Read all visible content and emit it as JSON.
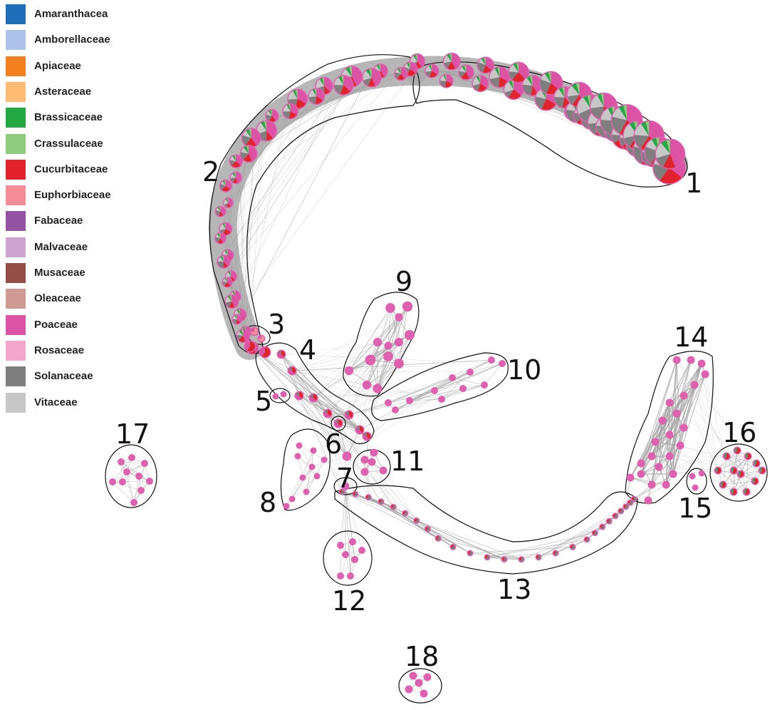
{
  "legend": [
    {
      "label": "Amaranthacea",
      "color": "#1f6eb8"
    },
    {
      "label": "Amborellaceae",
      "color": "#aec1e6"
    },
    {
      "label": "Apiaceae",
      "color": "#f47f1f"
    },
    {
      "label": "Asteraceae",
      "color": "#fdbb73"
    },
    {
      "label": "Brassicaceae",
      "color": "#22a944"
    },
    {
      "label": "Crassulaceae",
      "color": "#8ecb7e"
    },
    {
      "label": "Cucurbitaceae",
      "color": "#e3232b"
    },
    {
      "label": "Euphorbiaceae",
      "color": "#f58c98"
    },
    {
      "label": "Fabaceae",
      "color": "#9452a3"
    },
    {
      "label": "Malvaceae",
      "color": "#cfa3d1"
    },
    {
      "label": "Musaceae",
      "color": "#944d47"
    },
    {
      "label": "Oleaceae",
      "color": "#d09a94"
    },
    {
      "label": "Poaceae",
      "color": "#dc53a6"
    },
    {
      "label": "Rosaceae",
      "color": "#f5a7cb"
    },
    {
      "label": "Solanaceae",
      "color": "#7f7f7f"
    },
    {
      "label": "Vitaceae",
      "color": "#c7c7c7"
    }
  ],
  "clusters": [
    {
      "label": "1"
    },
    {
      "label": "2"
    },
    {
      "label": "3"
    },
    {
      "label": "4"
    },
    {
      "label": "5"
    },
    {
      "label": "6"
    },
    {
      "label": "7"
    },
    {
      "label": "8"
    },
    {
      "label": "9"
    },
    {
      "label": "10"
    },
    {
      "label": "11"
    },
    {
      "label": "12"
    },
    {
      "label": "13"
    },
    {
      "label": "14"
    },
    {
      "label": "15"
    },
    {
      "label": "16"
    },
    {
      "label": "17"
    },
    {
      "label": "18"
    }
  ],
  "colors": {
    "edge": "#9b9b9b",
    "outline": "#111111",
    "ring": "#e060b0"
  }
}
